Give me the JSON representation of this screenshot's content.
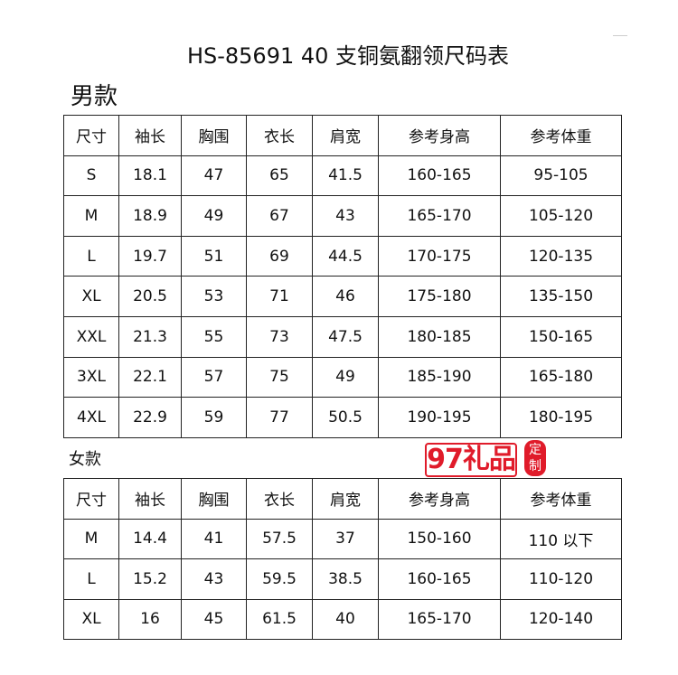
{
  "title": "HS-85691 40 支铜氨翻领尺码表",
  "men": {
    "label": "男款",
    "headers": [
      "尺寸",
      "袖长",
      "胸围",
      "衣长",
      "肩宽",
      "参考身高",
      "参考体重"
    ],
    "rows": [
      [
        "S",
        "18.1",
        "47",
        "65",
        "41.5",
        "160-165",
        "95-105"
      ],
      [
        "M",
        "18.9",
        "49",
        "67",
        "43",
        "165-170",
        "105-120"
      ],
      [
        "L",
        "19.7",
        "51",
        "69",
        "44.5",
        "170-175",
        "120-135"
      ],
      [
        "XL",
        "20.5",
        "53",
        "71",
        "46",
        "175-180",
        "135-150"
      ],
      [
        "XXL",
        "21.3",
        "55",
        "73",
        "47.5",
        "180-185",
        "150-165"
      ],
      [
        "3XL",
        "22.1",
        "57",
        "75",
        "49",
        "185-190",
        "165-180"
      ],
      [
        "4XL",
        "22.9",
        "59",
        "77",
        "50.5",
        "190-195",
        "180-195"
      ]
    ]
  },
  "women": {
    "label": "女款",
    "headers": [
      "尺寸",
      "袖长",
      "胸围",
      "衣长",
      "肩宽",
      "参考身高",
      "参考体重"
    ],
    "rows": [
      [
        "M",
        "14.4",
        "41",
        "57.5",
        "37",
        "150-160",
        "110 以下"
      ],
      [
        "L",
        "15.2",
        "43",
        "59.5",
        "38.5",
        "160-165",
        "110-120"
      ],
      [
        "XL",
        "16",
        "45",
        "61.5",
        "40",
        "165-170",
        "120-140"
      ]
    ]
  },
  "watermark": {
    "text": "97礼品",
    "seal": "定制",
    "color": "#e01b2a"
  }
}
